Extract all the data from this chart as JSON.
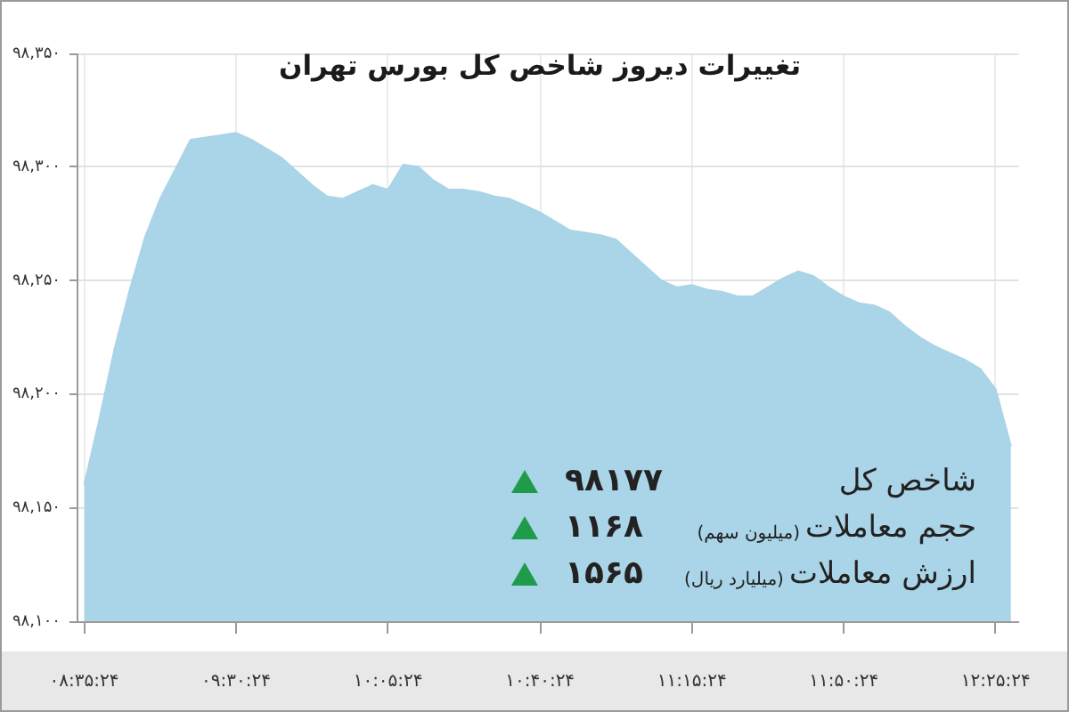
{
  "chart_data": {
    "type": "area",
    "title": "تغییرات دیروز شاخص کل بورس تهران",
    "categories": [
      "۰۸:۳۵:۲۴",
      null,
      null,
      null,
      null,
      null,
      null,
      null,
      null,
      null,
      "۰۹:۳۰:۲۴",
      null,
      null,
      null,
      null,
      null,
      null,
      null,
      null,
      null,
      "۱۰:۰۵:۲۴",
      null,
      null,
      null,
      null,
      null,
      null,
      null,
      null,
      null,
      "۱۰:۴۰:۲۴",
      null,
      null,
      null,
      null,
      null,
      null,
      null,
      null,
      null,
      "۱۱:۱۵:۲۴",
      null,
      null,
      null,
      null,
      null,
      null,
      null,
      null,
      null,
      "۱۱:۵۰:۲۴",
      null,
      null,
      null,
      null,
      null,
      null,
      null,
      null,
      null,
      "۱۲:۲۵:۲۴",
      null
    ],
    "values": [
      98160,
      98189,
      98220,
      98246,
      98269,
      98286,
      98299,
      98312,
      98313,
      98314,
      98315,
      98312,
      98308,
      98304,
      98298,
      98292,
      98287,
      98286,
      98289,
      98292,
      98290,
      98301,
      98300,
      98294,
      98290,
      98290,
      98289,
      98287,
      98286,
      98283,
      98280,
      98276,
      98272,
      98271,
      98270,
      98268,
      98262,
      98256,
      98250,
      98247,
      98248,
      98246,
      98245,
      98243,
      98243,
      98247,
      98251,
      98254,
      98252,
      98247,
      98243,
      98240,
      98239,
      98236,
      98230,
      98225,
      98221,
      98218,
      98215,
      98211,
      98202,
      98177
    ],
    "color": "#aad4e7",
    "ylim": [
      98100,
      98350
    ],
    "yticks": [
      {
        "value": 98100,
        "label": "۹۸,۱۰۰"
      },
      {
        "value": 98150,
        "label": "۹۸,۱۵۰"
      },
      {
        "value": 98200,
        "label": "۹۸,۲۰۰"
      },
      {
        "value": 98250,
        "label": "۹۸,۲۵۰"
      },
      {
        "value": 98300,
        "label": "۹۸,۳۰۰"
      },
      {
        "value": 98350,
        "label": "۹۸,۳۵۰"
      }
    ],
    "grid": true,
    "annotations": [
      "شاخص کل",
      "۹۸۱۷۷",
      "حجم معاملات (میلیون سهم)",
      "۱۱۶۸",
      "ارزش معاملات (میلیارد ریال)",
      "۱۵۶۵"
    ]
  }
}
